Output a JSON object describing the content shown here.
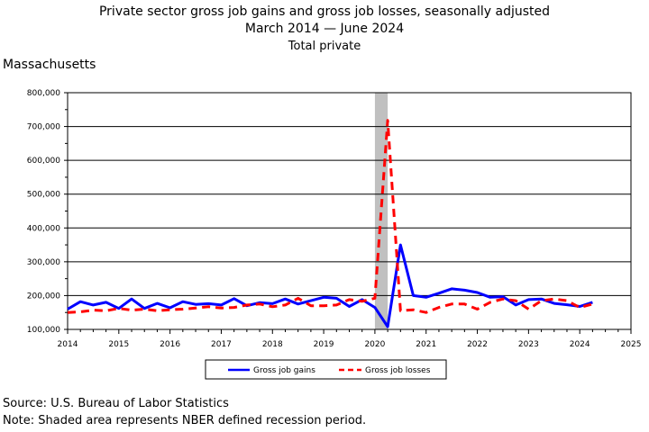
{
  "header": {
    "title": "Private sector gross job gains and gross job losses, seasonally adjusted",
    "subtitle": "March 2014 — June 2024",
    "industry": "Total private",
    "state": "Massachusetts"
  },
  "footer": {
    "source": "Source: U.S. Bureau of Labor Statistics",
    "note": "Note: Shaded area represents NBER defined recession period."
  },
  "chart_data": {
    "type": "line",
    "title": "Private sector gross job gains and gross job losses, seasonally adjusted",
    "subtitle": "March 2014 — June 2024",
    "xlabel": "",
    "ylabel": "",
    "xlim": [
      2014,
      2025
    ],
    "ylim": [
      100000,
      800000
    ],
    "y_ticks": [
      100000,
      200000,
      300000,
      400000,
      500000,
      600000,
      700000,
      800000
    ],
    "y_tick_labels": [
      "100,000",
      "200,000",
      "300,000",
      "400,000",
      "500,000",
      "600,000",
      "700,000",
      "800,000"
    ],
    "x_ticks": [
      2014,
      2015,
      2016,
      2017,
      2018,
      2019,
      2020,
      2021,
      2022,
      2023,
      2024,
      2025
    ],
    "x_tick_labels": [
      "2014",
      "2015",
      "2016",
      "2017",
      "2018",
      "2019",
      "2020",
      "2021",
      "2022",
      "2023",
      "2024",
      "2025"
    ],
    "grid": "horizontal",
    "legend_position": "bottom",
    "recession_shading": [
      2020.0,
      2020.25
    ],
    "x": [
      2014.0,
      2014.25,
      2014.5,
      2014.75,
      2015.0,
      2015.25,
      2015.5,
      2015.75,
      2016.0,
      2016.25,
      2016.5,
      2016.75,
      2017.0,
      2017.25,
      2017.5,
      2017.75,
      2018.0,
      2018.25,
      2018.5,
      2018.75,
      2019.0,
      2019.25,
      2019.5,
      2019.75,
      2020.0,
      2020.25,
      2020.5,
      2020.75,
      2021.0,
      2021.25,
      2021.5,
      2021.75,
      2022.0,
      2022.25,
      2022.5,
      2022.75,
      2023.0,
      2023.25,
      2023.5,
      2023.75,
      2024.0,
      2024.25
    ],
    "series": [
      {
        "name": "Gross job gains",
        "color": "#0000ff",
        "style": "solid",
        "values": [
          160000,
          182000,
          172000,
          180000,
          162000,
          190000,
          162000,
          177000,
          164000,
          182000,
          174000,
          176000,
          172000,
          191000,
          170000,
          179000,
          176000,
          190000,
          175000,
          185000,
          195000,
          192000,
          168000,
          188000,
          165000,
          108000,
          350000,
          200000,
          195000,
          207000,
          220000,
          216000,
          209000,
          195000,
          197000,
          172000,
          188000,
          190000,
          177000,
          173000,
          168000,
          180000
        ]
      },
      {
        "name": "Gross job losses",
        "color": "#ff0000",
        "style": "dashed",
        "values": [
          150000,
          152000,
          157000,
          155000,
          162000,
          157000,
          160000,
          155000,
          158000,
          160000,
          163000,
          167000,
          163000,
          165000,
          172000,
          175000,
          167000,
          172000,
          192000,
          170000,
          170000,
          172000,
          188000,
          183000,
          192000,
          718000,
          155000,
          158000,
          150000,
          165000,
          175000,
          175000,
          160000,
          180000,
          190000,
          185000,
          160000,
          185000,
          190000,
          185000,
          165000,
          175000
        ]
      }
    ]
  }
}
